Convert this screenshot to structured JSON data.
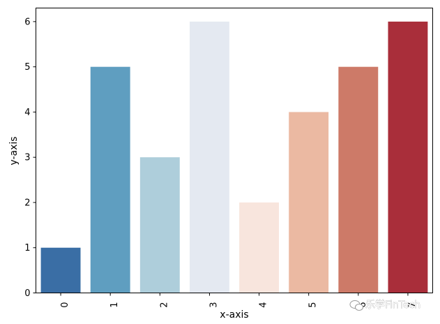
{
  "chart_data": {
    "type": "bar",
    "categories": [
      "0",
      "1",
      "2",
      "3",
      "4",
      "5",
      "6",
      "7"
    ],
    "values": [
      1,
      5,
      3,
      6,
      2,
      4,
      5,
      6
    ],
    "colors": [
      "#3a6ea5",
      "#5f9ec0",
      "#aecedb",
      "#e4e9f1",
      "#f8e5dd",
      "#ebb9a2",
      "#cd7a68",
      "#a92e3a"
    ],
    "xlabel": "x-axis",
    "ylabel": "y-axis",
    "ylim": [
      0,
      6.3
    ],
    "yticks": [
      0,
      1,
      2,
      3,
      4,
      5,
      6
    ],
    "grid": false
  },
  "watermark": {
    "text": "乐学FinTech",
    "icon": "wechat-icon"
  }
}
